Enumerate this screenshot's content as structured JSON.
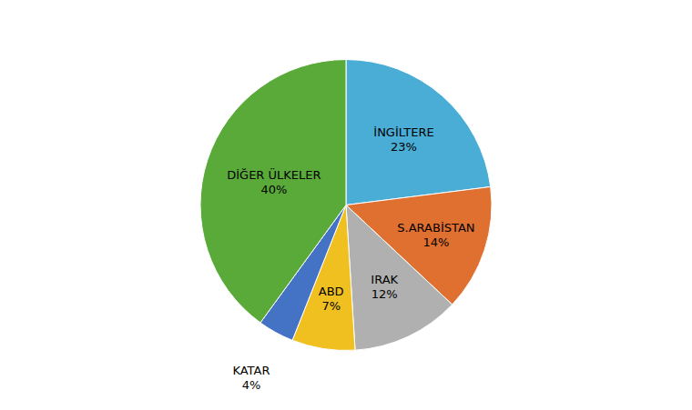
{
  "chart_data": {
    "type": "pie",
    "categories": [
      "İNGİLTERE",
      "S.ARABİSTAN",
      "IRAK",
      "ABD",
      "KATAR",
      "DİĞER ÜLKELER"
    ],
    "values": [
      23,
      14,
      12,
      7,
      4,
      40
    ],
    "value_labels": [
      "23%",
      "14%",
      "12%",
      "7%",
      "4%",
      "40%"
    ],
    "colors": [
      "#4aadd6",
      "#e07030",
      "#b0b0b0",
      "#f0c020",
      "#4472c4",
      "#5aaa3a"
    ],
    "data_labels": true
  }
}
